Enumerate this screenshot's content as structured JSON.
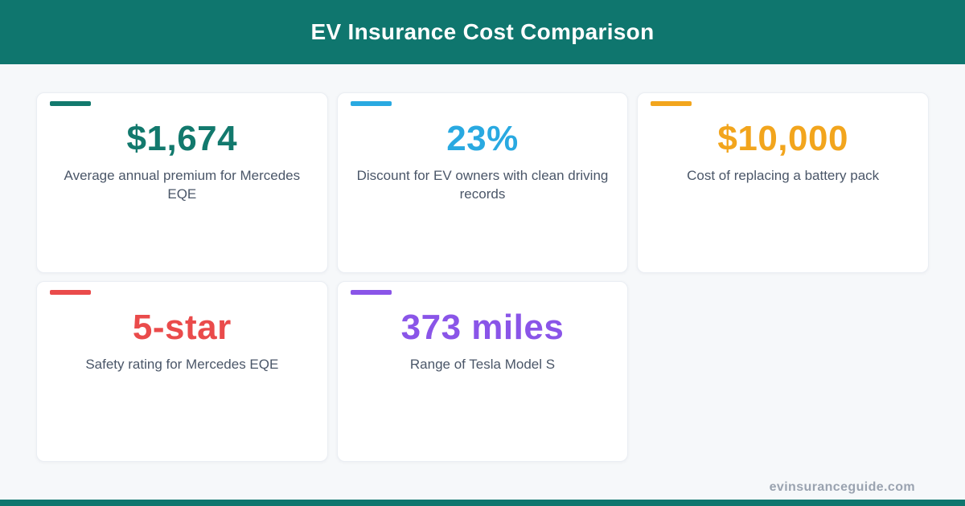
{
  "header": {
    "title": "EV Insurance Cost Comparison"
  },
  "theme": {
    "header_bg": "#0f766e",
    "bottom_bar_bg": "#0f766e",
    "page_bg": "#f6f8fa",
    "card_bg": "#ffffff",
    "label_color": "#4a5668",
    "footer_color": "#9aa3b0"
  },
  "cards": [
    {
      "value": "$1,674",
      "label": "Average annual premium for Mercedes EQE",
      "color": "#12796d"
    },
    {
      "value": "23%",
      "label": "Discount for EV owners with clean driving records",
      "color": "#29a9e1"
    },
    {
      "value": "$10,000",
      "label": "Cost of replacing a battery pack",
      "color": "#f2a51d"
    },
    {
      "value": "5-star",
      "label": "Safety rating for Mercedes EQE",
      "color": "#ea4b4b"
    },
    {
      "value": "373 miles",
      "label": "Range of Tesla Model S",
      "color": "#8a55e8"
    }
  ],
  "footer": {
    "site": "evinsuranceguide.com"
  }
}
